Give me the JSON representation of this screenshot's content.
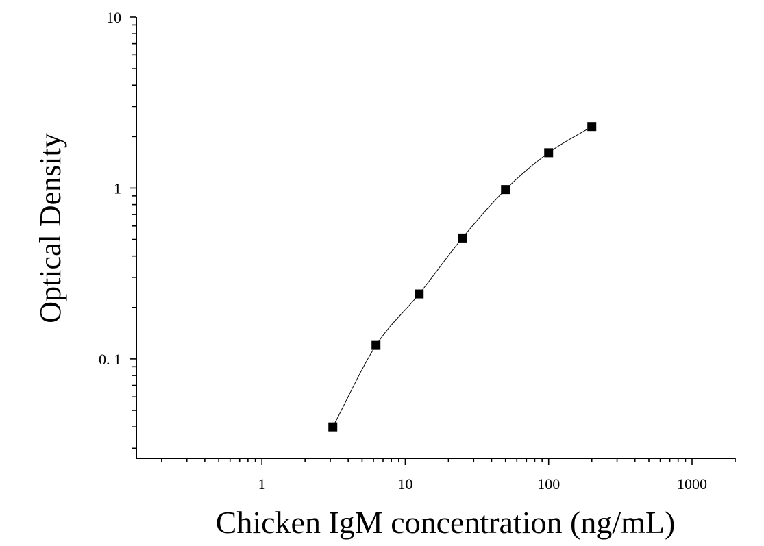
{
  "chart_data": {
    "type": "scatter",
    "xlabel": "Chicken IgM concentration (ng/mL)",
    "ylabel": "Optical Density",
    "x_scale": "log",
    "y_scale": "log",
    "xlim": [
      0.1333,
      2000
    ],
    "ylim": [
      0.0262,
      10
    ],
    "x_ticks": [
      {
        "value": 1,
        "label": "1"
      },
      {
        "value": 10,
        "label": "10"
      },
      {
        "value": 100,
        "label": "100"
      },
      {
        "value": 1000,
        "label": "1000"
      }
    ],
    "y_ticks": [
      {
        "value": 0.1,
        "label": "0. 1"
      },
      {
        "value": 1,
        "label": "1"
      },
      {
        "value": 10,
        "label": "10"
      }
    ],
    "grid": false,
    "legend": "none",
    "marker": "square",
    "color": "#000000",
    "series": [
      {
        "x": [
          3.125,
          6.25,
          12.5,
          25,
          50,
          100,
          200
        ],
        "y": [
          0.04,
          0.12,
          0.24,
          0.51,
          0.98,
          1.61,
          2.29
        ]
      }
    ],
    "fit_curve": true
  }
}
